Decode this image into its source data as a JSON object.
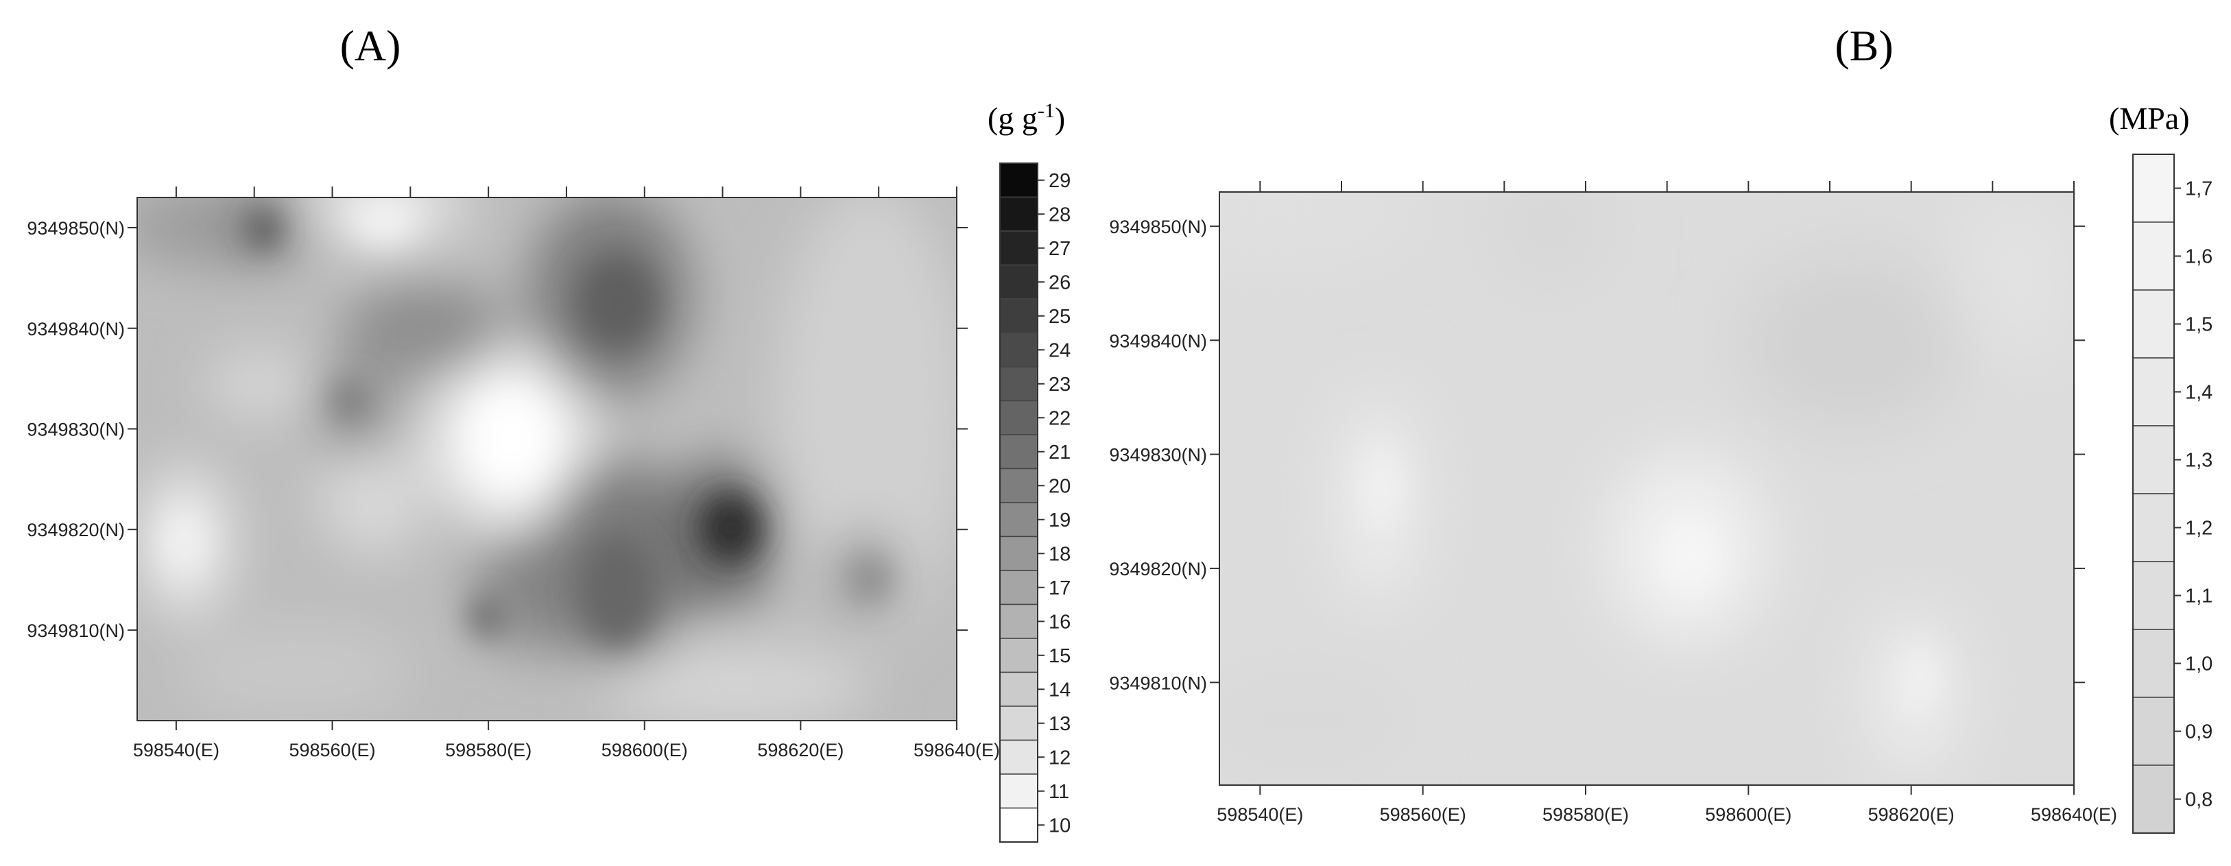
{
  "chart_data": [
    {
      "type": "heatmap",
      "panel_label": "(A)",
      "unit_label": "(g g",
      "unit_superscript": "-1",
      "unit_close": ")",
      "x_ticks": [
        "598540(E)",
        "598560(E)",
        "598580(E)",
        "598600(E)",
        "598620(E)",
        "598640(E)"
      ],
      "x_tick_values": [
        598540,
        598560,
        598580,
        598600,
        598620,
        598640
      ],
      "y_ticks": [
        "9349850(N)",
        "9349840(N)",
        "9349830(N)",
        "9349820(N)",
        "9349810(N)"
      ],
      "y_tick_values": [
        9349850,
        9349840,
        9349830,
        9349820,
        9349810
      ],
      "xlim": [
        598535,
        598640
      ],
      "ylim": [
        9349801,
        9349853
      ],
      "colorbar_labels": [
        "29",
        "28",
        "27",
        "26",
        "25",
        "24",
        "23",
        "22",
        "21",
        "20",
        "19",
        "18",
        "17",
        "16",
        "15",
        "14",
        "13",
        "12",
        "11",
        "10"
      ],
      "colorbar_range": [
        10,
        30
      ],
      "grid": false
    },
    {
      "type": "heatmap",
      "panel_label": "(B)",
      "unit_label": "(MPa)",
      "x_ticks": [
        "598540(E)",
        "598560(E)",
        "598580(E)",
        "598600(E)",
        "598620(E)",
        "598640(E)"
      ],
      "x_tick_values": [
        598540,
        598560,
        598580,
        598600,
        598620,
        598640
      ],
      "y_ticks": [
        "9349850(N)",
        "9349840(N)",
        "9349830(N)",
        "9349820(N)",
        "9349810(N)"
      ],
      "y_tick_values": [
        9349850,
        9349840,
        9349830,
        9349820,
        9349810
      ],
      "xlim": [
        598535,
        598640
      ],
      "ylim": [
        9349801,
        9349853
      ],
      "colorbar_labels": [
        "1,7",
        "1,6",
        "1,5",
        "1,4",
        "1,3",
        "1,2",
        "1,1",
        "1,0",
        "0,9",
        "0,8"
      ],
      "colorbar_range": [
        0.75,
        1.8
      ],
      "grid": false
    }
  ]
}
